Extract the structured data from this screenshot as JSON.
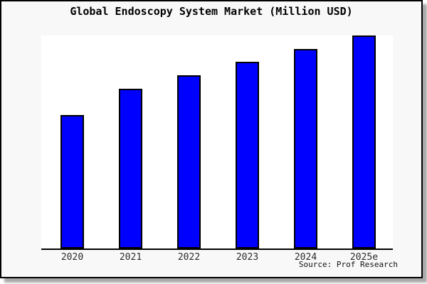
{
  "window": {
    "outer_background": "#ffffff",
    "card_background": "#f8f8f8",
    "card_border_color": "#000000",
    "shadow_color": "#a9a9a9",
    "plot_background": "#ffffff"
  },
  "chart_data": {
    "type": "bar",
    "title": "Global Endoscopy System Market (Million USD)",
    "categories": [
      "2020",
      "2021",
      "2022",
      "2023",
      "2024",
      "2025e"
    ],
    "values": [
      62.7,
      75.0,
      81.3,
      87.7,
      93.8,
      100.0
    ],
    "values_unit": "percent of tallest bar (image shows no numeric y-axis scale)",
    "xlabel": "",
    "ylabel": "",
    "y_axis_tick_labels": "none shown",
    "gridlines": false,
    "legend_position": "none",
    "bar_fill_color": "#0000ff",
    "bar_border_color": "#000000",
    "axis_line_color": "#000000",
    "source_note": "Source: Prof Research"
  }
}
